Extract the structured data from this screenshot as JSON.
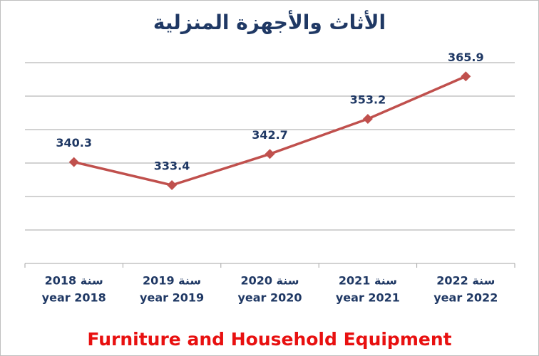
{
  "chart_data": {
    "type": "line",
    "title": "الأثاث والأجهزة المنزلية",
    "subtitle": "Furniture and Household Equipment",
    "categories": [
      [
        "سنة 2018",
        "year 2018"
      ],
      [
        "سنة 2019",
        "year 2019"
      ],
      [
        "سنة 2020",
        "year 2020"
      ],
      [
        "سنة 2021",
        "year 2021"
      ],
      [
        "سنة 2022",
        "year 2022"
      ]
    ],
    "series": [
      {
        "name": "Furniture and Household Equipment",
        "color": "#c0504d",
        "values": [
          340.3,
          333.4,
          342.7,
          353.2,
          365.9
        ]
      }
    ],
    "ylim": [
      310,
      370
    ],
    "yticks": [
      310,
      320,
      330,
      340,
      350,
      360,
      370
    ],
    "grid": true
  }
}
